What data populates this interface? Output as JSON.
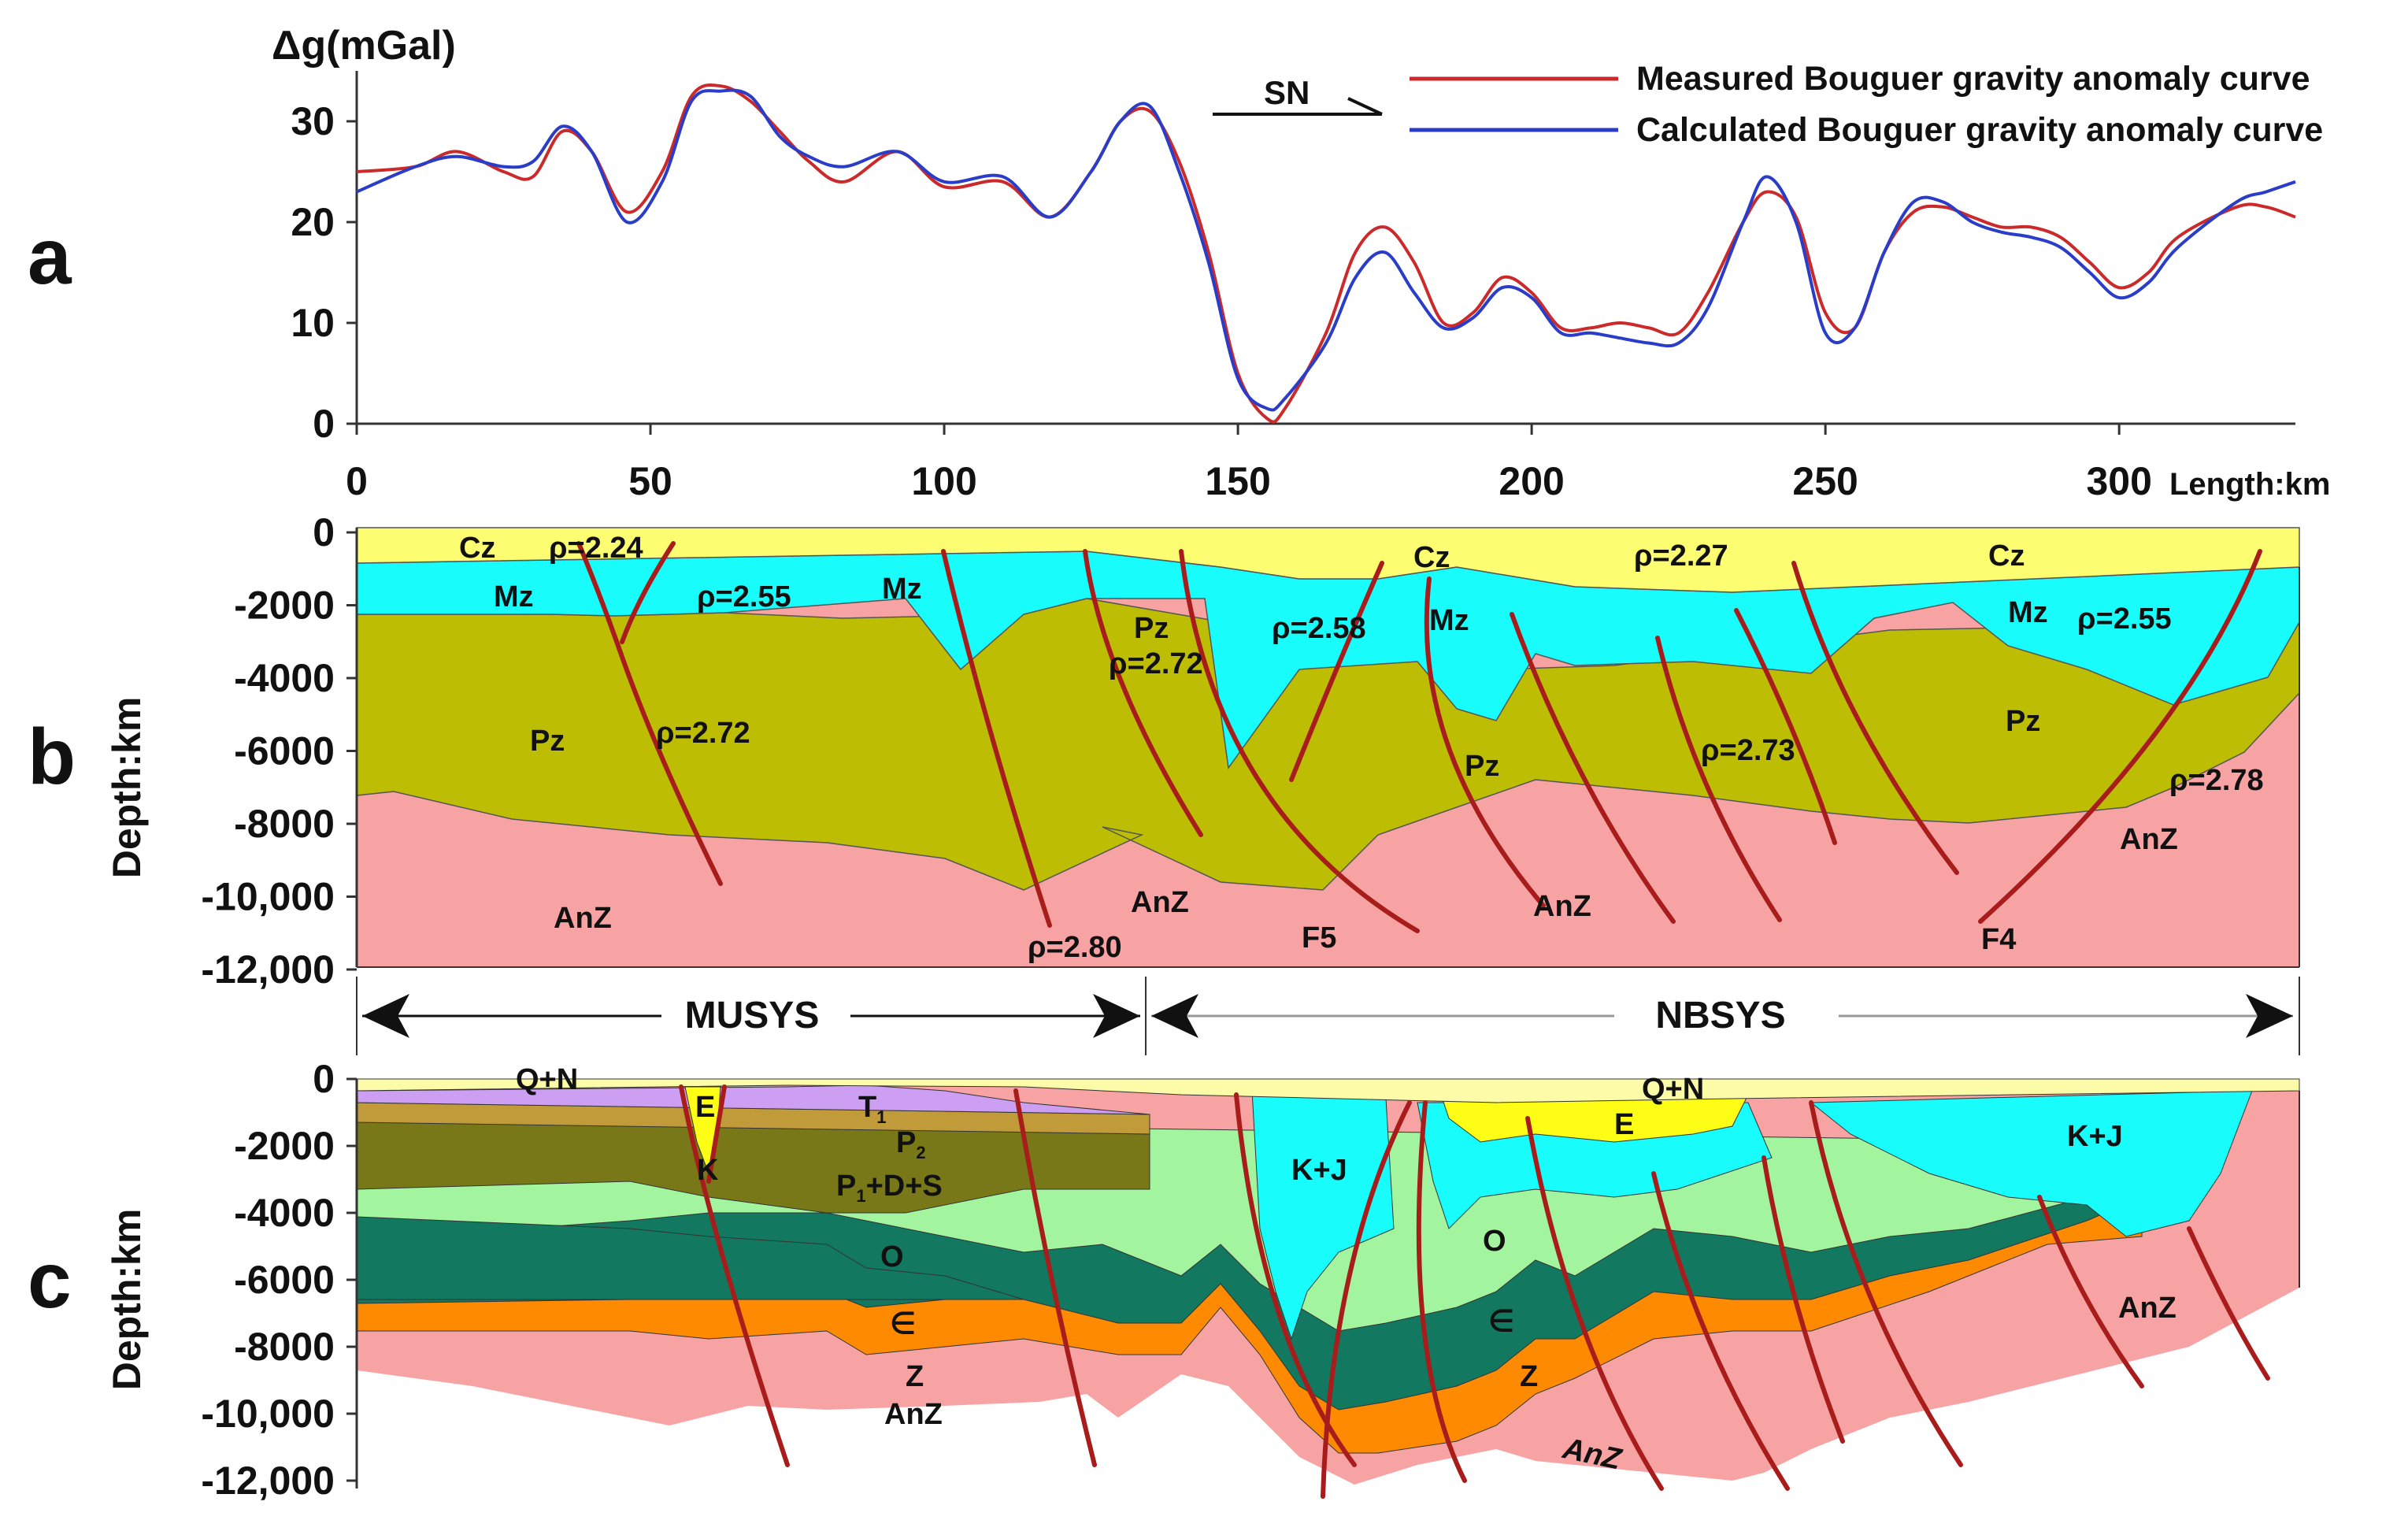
{
  "chart_data": [
    {
      "type": "line",
      "panel_label": "a",
      "ylabel": "Δg(mGal)",
      "xlabel": "Length:km",
      "xlim": [
        0,
        330
      ],
      "ylim": [
        0,
        35
      ],
      "xticks": [
        "0",
        "50",
        "100",
        "150",
        "200",
        "250",
        "300"
      ],
      "yticks": [
        "0",
        "10",
        "20",
        "30"
      ],
      "direction_label": "SN",
      "series": [
        {
          "name": "Measured Bouguer gravity anomaly curve",
          "color": "#cc2a2a",
          "x": [
            0,
            10,
            17,
            25,
            30,
            35,
            40,
            46,
            52,
            57,
            62,
            67,
            72,
            77,
            83,
            92,
            100,
            110,
            118,
            125,
            130,
            135,
            140,
            145,
            150,
            155,
            158,
            165,
            170,
            175,
            180,
            185,
            190,
            195,
            200,
            205,
            210,
            215,
            220,
            225,
            230,
            236,
            240,
            245,
            250,
            255,
            260,
            265,
            270,
            275,
            280,
            285,
            290,
            295,
            300,
            305,
            310,
            320,
            325,
            330
          ],
          "values": [
            25,
            25.5,
            27,
            25,
            24.5,
            29,
            27,
            21,
            25,
            32.5,
            33.5,
            32,
            29,
            26,
            24,
            27,
            23.5,
            24,
            20.5,
            25,
            30,
            31,
            26,
            17,
            5,
            0.5,
            1.5,
            9,
            17,
            19.5,
            16,
            10,
            11,
            14.5,
            13,
            9.5,
            9.5,
            10,
            9.5,
            9,
            13,
            20,
            23,
            20.5,
            11,
            9.5,
            17,
            21,
            21.5,
            20.5,
            19.5,
            19.5,
            18.5,
            16,
            13.5,
            15,
            18.5,
            21.5,
            21.5,
            20.5
          ]
        },
        {
          "name": "Calculated Bouguer gravity anomaly curve",
          "color": "#2a3dc9",
          "x": [
            0,
            10,
            17,
            25,
            30,
            35,
            40,
            46,
            52,
            57,
            62,
            67,
            72,
            77,
            83,
            92,
            100,
            110,
            118,
            125,
            130,
            135,
            140,
            145,
            150,
            155,
            158,
            165,
            170,
            175,
            180,
            185,
            190,
            195,
            200,
            205,
            210,
            215,
            220,
            225,
            230,
            236,
            240,
            245,
            250,
            255,
            260,
            265,
            270,
            275,
            280,
            285,
            290,
            295,
            300,
            305,
            310,
            320,
            325,
            330
          ],
          "values": [
            23,
            25.5,
            26.5,
            25.5,
            26,
            29.5,
            27,
            20,
            24,
            32,
            33,
            32.5,
            28.5,
            26.5,
            25.5,
            27,
            24,
            24.5,
            20.5,
            25,
            30,
            31.5,
            25,
            16,
            4.5,
            1.5,
            2.5,
            8,
            14.5,
            17,
            13,
            9.5,
            10.5,
            13.5,
            12.5,
            9,
            9,
            8.5,
            8,
            8,
            11.5,
            20,
            24.5,
            20,
            9,
            9.5,
            17,
            22,
            22,
            20,
            19,
            18.5,
            17.5,
            15,
            12.5,
            14,
            17.5,
            22,
            23,
            24
          ]
        }
      ]
    },
    {
      "type": "cross-section",
      "panel_label": "b",
      "ylabel": "Depth:km",
      "yticks": [
        "0",
        "-2000",
        "-4000",
        "-6000",
        "-8000",
        "-10,000",
        "-12,000"
      ],
      "units": [
        "Cz",
        "Mz",
        "Pz",
        "AnZ"
      ],
      "labels": {
        "cz1": "Cz",
        "rho224": "ρ=2.24",
        "mz1": "Mz",
        "rho255a": "ρ=2.55",
        "mz2": "Mz",
        "pz1": "Pz",
        "rho272a": "ρ=2.72",
        "anz1": "AnZ",
        "rho280": "ρ=2.80",
        "pz2": "Pz",
        "rho272b": "ρ=2.72",
        "anz2": "AnZ",
        "rho258": "ρ=2.58",
        "f5": "F5",
        "cz2": "Cz",
        "mz3": "Mz",
        "pz3": "Pz",
        "anz3": "AnZ",
        "rho227": "ρ=2.27",
        "rho273": "ρ=2.73",
        "cz3": "Cz",
        "mz4": "Mz",
        "rho255b": "ρ=2.55",
        "pz4": "Pz",
        "rho278": "ρ=2.78",
        "anz4": "AnZ",
        "f4": "F4"
      },
      "systems": [
        "MUSYS",
        "NBSYS"
      ]
    },
    {
      "type": "cross-section",
      "panel_label": "c",
      "ylabel": "Depth:km",
      "yticks": [
        "0",
        "-2000",
        "-4000",
        "-6000",
        "-8000",
        "-10,000",
        "-12,000"
      ],
      "units": [
        "Q+N",
        "E",
        "K",
        "T1",
        "P2",
        "P1+D+S",
        "O",
        "∈",
        "Z",
        "AnZ",
        "K+J"
      ],
      "labels": {
        "qn1": "Q+N",
        "e1": "E",
        "k1": "K",
        "o1": "O",
        "cam1": "∈",
        "z1": "Z",
        "anz1": "AnZ",
        "kj1": "K+J",
        "qn2": "Q+N",
        "e2": "E",
        "o2": "O",
        "cam2": "∈",
        "z2": "Z",
        "anz2": "AnZ",
        "kj2": "K+J",
        "anz3": "AnZ"
      }
    }
  ],
  "colors": {
    "cz": "#fdfd72",
    "mz": "#19fcfc",
    "pz": "#bdbd04",
    "anz": "#f7a3a3",
    "qn": "#fbfba8",
    "e": "#fdfd16",
    "kj": "#19fcfc",
    "t": "#cc9ff2",
    "p": "#c19a3a",
    "ds": "#787818",
    "o": "#a2f59e",
    "cam": "#12785f",
    "z": "#fe8a02",
    "fault": "#a81c1c"
  }
}
